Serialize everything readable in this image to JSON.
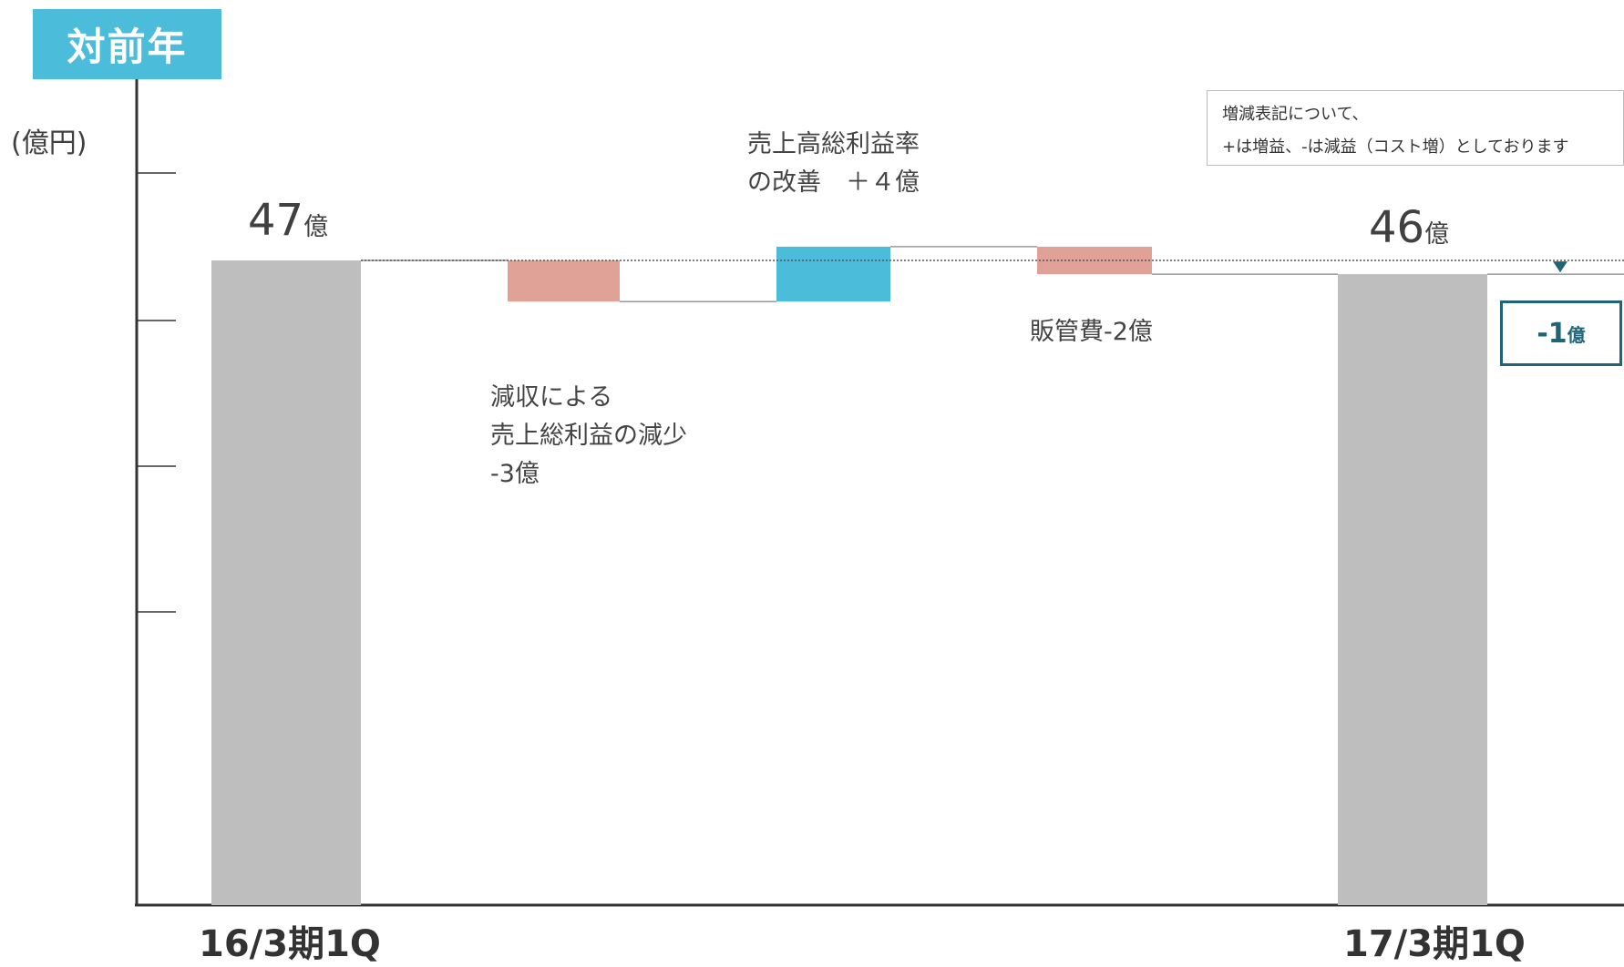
{
  "header": {
    "tag": "対前年",
    "unit": "(億円)"
  },
  "note": {
    "line1": "増減表記について、",
    "line2": "+は増益、-は減益（コスト増）としております"
  },
  "chart_data": {
    "type": "waterfall",
    "categories": [
      "16/3期1Q",
      "減収による売上総利益の減少",
      "売上高総利益率の改善",
      "販管費",
      "17/3期1Q"
    ],
    "values": [
      47,
      -3,
      4,
      -2,
      46
    ],
    "kinds": [
      "total",
      "delta",
      "delta",
      "delta",
      "total"
    ],
    "x_labels": [
      "16/3期1Q",
      "17/3期1Q"
    ],
    "totals": [
      {
        "value": "47",
        "unit": "億"
      },
      {
        "value": "46",
        "unit": "億"
      }
    ],
    "annotations": {
      "decrease_sales": [
        "減収による",
        "売上総利益の減少",
        "-3億"
      ],
      "margin_improve": [
        "売上高総利益率",
        "の改善　＋４億"
      ],
      "sga": "販管費-2億"
    },
    "difference": {
      "value": "-1",
      "unit": "億"
    },
    "colors": {
      "total": "#BEBEBE",
      "decrease": "#E0A197",
      "increase": "#4BBCD9",
      "accent": "#1F6577",
      "tag": "#4BBCD9"
    }
  }
}
